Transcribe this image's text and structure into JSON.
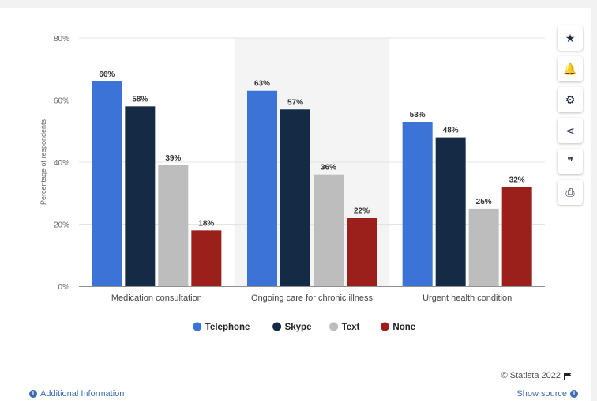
{
  "chart_data": {
    "type": "bar",
    "categories": [
      "Medication consultation",
      "Ongoing care for chronic illness",
      "Urgent health condition"
    ],
    "series": [
      {
        "name": "Telephone",
        "color": "#3b73d6",
        "values": [
          66,
          63,
          53
        ]
      },
      {
        "name": "Skype",
        "color": "#152a45",
        "values": [
          58,
          57,
          48
        ]
      },
      {
        "name": "Text",
        "color": "#bdbdbd",
        "values": [
          39,
          36,
          25
        ]
      },
      {
        "name": "None",
        "color": "#9b1f1a",
        "values": [
          18,
          22,
          32
        ]
      }
    ],
    "ylabel": "Percentage of respondents",
    "ylim": [
      0,
      80
    ],
    "yticks": [
      0,
      20,
      40,
      60,
      80
    ],
    "ytick_labels": [
      "0%",
      "20%",
      "40%",
      "60%",
      "80%"
    ],
    "value_suffix": "%",
    "grid": true,
    "legend_position": "bottom"
  },
  "sidebar": {
    "buttons": [
      {
        "name": "star-icon",
        "glyph": "★"
      },
      {
        "name": "bell-icon",
        "glyph": "🔔"
      },
      {
        "name": "gear-icon",
        "glyph": "⚙"
      },
      {
        "name": "share-icon",
        "glyph": "⋖"
      },
      {
        "name": "quote-icon",
        "glyph": "❞"
      },
      {
        "name": "print-icon",
        "glyph": "⎙"
      }
    ]
  },
  "footer": {
    "credit": "© Statista 2022",
    "additional_info": "Additional Information",
    "show_source": "Show source"
  }
}
